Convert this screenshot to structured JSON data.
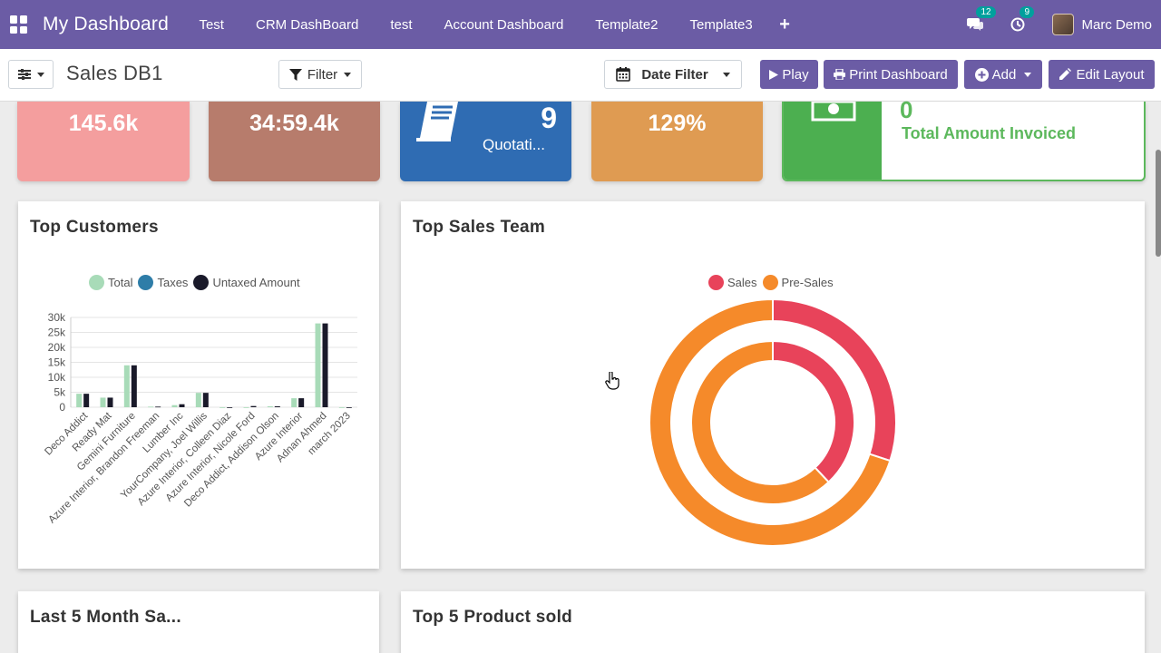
{
  "app": {
    "title": "My Dashboard"
  },
  "nav": {
    "items": [
      "Test",
      "CRM DashBoard",
      "test",
      "Account Dashboard",
      "Template2",
      "Template3"
    ],
    "plus": "+"
  },
  "systray": {
    "messages_count": "12",
    "activities_count": "9",
    "user_name": "Marc Demo"
  },
  "control": {
    "title": "Sales DB1",
    "filter_label": "Filter",
    "date_filter_label": "Date Filter",
    "play_label": "Play",
    "print_label": "Print Dashboard",
    "add_label": "Add",
    "edit_label": "Edit Layout"
  },
  "tiles": [
    {
      "value": "145.6k",
      "color": "#f49e9e"
    },
    {
      "value": "34:59.4k",
      "color": "#b77c6c"
    },
    {
      "value": "9",
      "label": "Quotati...",
      "color": "#2f6cb3"
    },
    {
      "value": "129%",
      "color": "#df9b52"
    },
    {
      "value": "0",
      "label": "Total Amount Invoiced",
      "color": "#4caf50"
    }
  ],
  "panels": {
    "top_customers": "Top Customers",
    "top_sales_team": "Top Sales Team",
    "last5": "Last 5 Month Sa...",
    "top5": "Top 5 Product sold"
  },
  "chart_data": [
    {
      "type": "bar",
      "title": "Top Customers",
      "categories": [
        "Deco Addict",
        "Ready Mat",
        "Gemini Furniture",
        "Azure Interior, Brandon Freeman",
        "Lumber Inc",
        "YourCompany, Joel Willis",
        "Azure Interior, Colleen Diaz",
        "Azure Interior, Nicole Ford",
        "Deco Addict, Addison Olson",
        "Azure Interior",
        "Adnan Ahmed",
        "march 2023"
      ],
      "series": [
        {
          "name": "Total",
          "color": "#a8dbb8",
          "values": [
            4500,
            3200,
            14000,
            200,
            700,
            4800,
            0,
            0,
            300,
            3000,
            28000,
            0
          ]
        },
        {
          "name": "Taxes",
          "color": "#2e7da8",
          "values": [
            0,
            0,
            0,
            0,
            0,
            0,
            0,
            0,
            0,
            0,
            0,
            0
          ]
        },
        {
          "name": "Untaxed Amount",
          "color": "#1a1a2a",
          "values": [
            4500,
            3200,
            14000,
            200,
            1000,
            4800,
            0,
            400,
            300,
            3000,
            28000,
            0
          ]
        }
      ],
      "ylim": [
        0,
        30000
      ],
      "yticks": [
        "0",
        "5k",
        "10k",
        "15k",
        "20k",
        "25k",
        "30k"
      ],
      "legend": "top"
    },
    {
      "type": "pie",
      "title": "Top Sales Team",
      "legend": "top",
      "series": [
        {
          "name": "Sales",
          "color": "#e8435a"
        },
        {
          "name": "Pre-Sales",
          "color": "#f58a2a"
        }
      ],
      "rings": [
        {
          "values": [
            30,
            70
          ]
        },
        {
          "values": [
            38,
            62
          ]
        }
      ]
    }
  ]
}
